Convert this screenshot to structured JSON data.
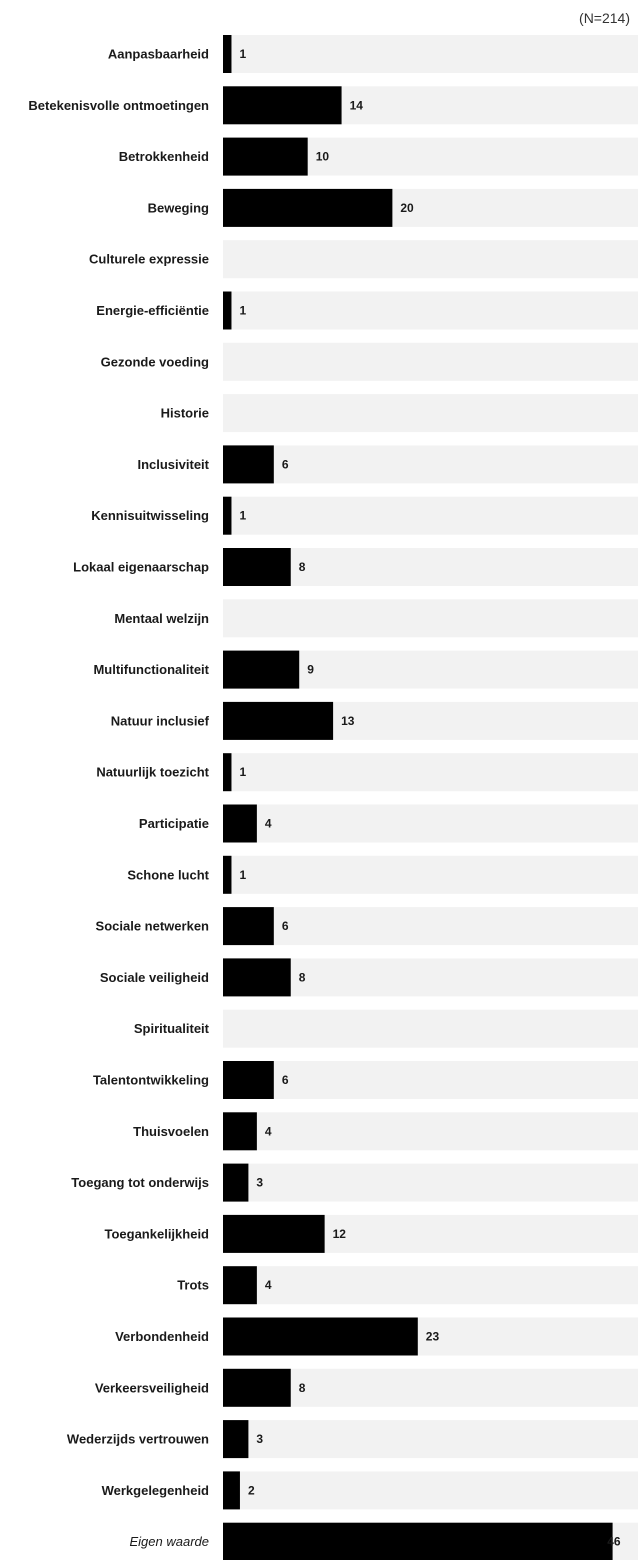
{
  "note": "(N=214)",
  "colors": {
    "track": "#f2f2f2",
    "bar": "#000000"
  },
  "chart_data": {
    "type": "bar",
    "orientation": "horizontal",
    "xlim": [
      0,
      49
    ],
    "grid": false,
    "categories": [
      "Aanpasbaarheid",
      "Betekenisvolle ontmoetingen",
      "Betrokkenheid",
      "Beweging",
      "Culturele expressie",
      "Energie-efficiëntie",
      "Gezonde voeding",
      "Historie",
      "Inclusiviteit",
      "Kennisuitwisseling",
      "Lokaal eigenaarschap",
      "Mentaal welzijn",
      "Multifunctionaliteit",
      "Natuur inclusief",
      "Natuurlijk toezicht",
      "Participatie",
      "Schone lucht",
      "Sociale netwerken",
      "Sociale veiligheid",
      "Spiritualiteit",
      "Talentontwikkeling",
      "Thuisvoelen",
      "Toegang tot onderwijs",
      "Toegankelijkheid",
      "Trots",
      "Verbondenheid",
      "Verkeersveiligheid",
      "Wederzijds vertrouwen",
      "Werkgelegenheid",
      "Eigen waarde"
    ],
    "values": [
      1,
      14,
      10,
      20,
      null,
      1,
      null,
      null,
      6,
      1,
      8,
      null,
      9,
      13,
      1,
      4,
      1,
      6,
      8,
      null,
      6,
      4,
      3,
      12,
      4,
      23,
      8,
      3,
      2,
      46
    ],
    "italic_categories": [
      "Eigen waarde"
    ]
  }
}
